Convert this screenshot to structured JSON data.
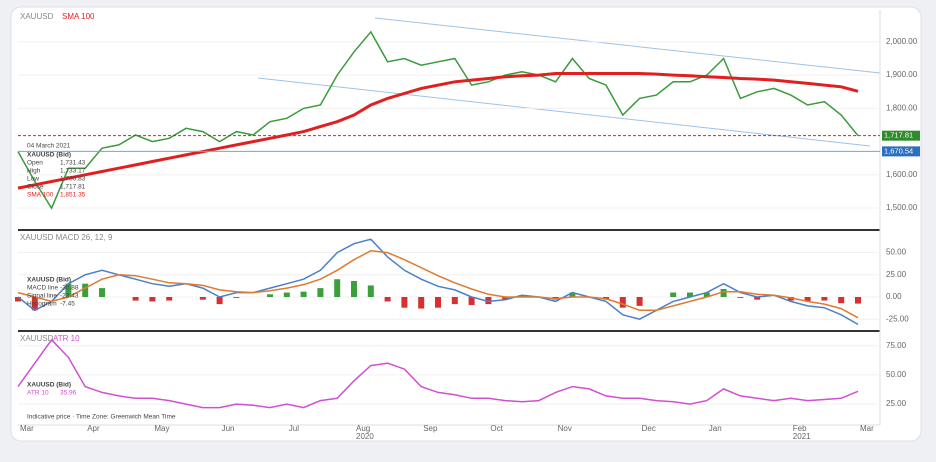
{
  "chart_data": [
    {
      "type": "line",
      "header": "XAUUSD",
      "series": [
        {
          "name": "XAUUSD",
          "color": "#3a9a3a",
          "values": [
            1670,
            1580,
            1500,
            1620,
            1620,
            1680,
            1690,
            1720,
            1700,
            1710,
            1740,
            1730,
            1700,
            1730,
            1720,
            1760,
            1770,
            1800,
            1810,
            1900,
            1970,
            2030,
            1940,
            1950,
            1930,
            1940,
            1950,
            1870,
            1880,
            1900,
            1910,
            1900,
            1880,
            1950,
            1890,
            1870,
            1780,
            1830,
            1840,
            1880,
            1880,
            1900,
            1950,
            1830,
            1850,
            1860,
            1840,
            1810,
            1820,
            1780,
            1717.81
          ]
        },
        {
          "name": "SMA 100",
          "color": "#e02020",
          "values": [
            1560,
            1570,
            1580,
            1590,
            1600,
            1610,
            1620,
            1630,
            1640,
            1650,
            1660,
            1670,
            1680,
            1690,
            1700,
            1710,
            1720,
            1730,
            1745,
            1760,
            1780,
            1810,
            1830,
            1845,
            1860,
            1870,
            1880,
            1885,
            1890,
            1895,
            1898,
            1900,
            1905,
            1905,
            1905,
            1905,
            1905,
            1905,
            1903,
            1900,
            1898,
            1895,
            1893,
            1890,
            1888,
            1885,
            1880,
            1875,
            1870,
            1865,
            1851.35
          ]
        }
      ],
      "ylim": [
        1440,
        2090
      ],
      "yticks": [
        {
          "value": 1500,
          "label": "1,500.00"
        },
        {
          "value": 1600,
          "label": "1,600.00"
        },
        {
          "value": 1800,
          "label": "1,800.00"
        },
        {
          "value": 1900,
          "label": "1,900.00"
        },
        {
          "value": 2000,
          "label": "2,000.00"
        }
      ],
      "price_tag": "1,717.81",
      "level": {
        "value": 1670.54,
        "label": "1,670.54"
      },
      "info": {
        "date": "04 March 2021",
        "title": "XAUUSD (Bid)",
        "rows": [
          [
            "Open",
            "1,731.43"
          ],
          [
            "High",
            "1,733.17"
          ],
          [
            "Low",
            "1,700.83"
          ],
          [
            "Close",
            "1,717.81"
          ],
          [
            "SMA 100",
            "1,851.35"
          ]
        ]
      }
    },
    {
      "type": "line",
      "header": "XAUUSD MACD 26, 12, 9",
      "series": [
        {
          "name": "Histogram",
          "kind": "bar",
          "color": "#3aa03a",
          "negative_color": "#d83030",
          "values": [
            -5,
            -15,
            0,
            15,
            15,
            10,
            0,
            -4,
            -5,
            -4,
            0,
            -3,
            -8,
            -1,
            0,
            3,
            5,
            6,
            10,
            20,
            18,
            13,
            -5,
            -12,
            -13,
            -12,
            -8,
            -9,
            -8,
            -3,
            2,
            0,
            -3,
            5,
            0,
            -3,
            -12,
            -10,
            0,
            5,
            5,
            5,
            9,
            -1,
            -3,
            0,
            -4,
            -5,
            -4,
            -7,
            -7.45
          ]
        },
        {
          "name": "MACD line",
          "color": "#4a80c8",
          "values": [
            0,
            -15,
            -5,
            15,
            25,
            30,
            25,
            20,
            15,
            12,
            15,
            10,
            0,
            5,
            5,
            10,
            15,
            20,
            30,
            50,
            60,
            65,
            45,
            30,
            20,
            12,
            8,
            0,
            -5,
            -3,
            2,
            0,
            -5,
            5,
            0,
            -5,
            -20,
            -25,
            -15,
            -5,
            0,
            5,
            15,
            5,
            0,
            2,
            -5,
            -10,
            -12,
            -20,
            -30.88
          ]
        },
        {
          "name": "Signal line",
          "color": "#e07a30",
          "values": [
            5,
            0,
            -5,
            0,
            10,
            20,
            25,
            24,
            20,
            16,
            15,
            13,
            8,
            6,
            5,
            7,
            10,
            14,
            20,
            30,
            42,
            52,
            50,
            42,
            33,
            24,
            16,
            9,
            3,
            0,
            0,
            0,
            -2,
            0,
            0,
            -2,
            -8,
            -15,
            -15,
            -10,
            -5,
            0,
            6,
            6,
            3,
            2,
            -1,
            -5,
            -8,
            -13,
            -23.43
          ]
        }
      ],
      "ylim": [
        -36,
        72
      ],
      "yticks": [
        {
          "value": -25,
          "label": "-25.00"
        },
        {
          "value": 0,
          "label": "0.00"
        },
        {
          "value": 25,
          "label": "25.00"
        },
        {
          "value": 50,
          "label": "50.00"
        }
      ],
      "info": {
        "title": "XAUUSD (Bid)",
        "rows": [
          [
            "MACD line",
            "-30.88"
          ],
          [
            "Signal line",
            "-23.43"
          ],
          [
            "Histogram",
            "-7.45"
          ]
        ]
      }
    },
    {
      "type": "line",
      "header": "XAUUSD",
      "series": [
        {
          "name": "ATR 10",
          "color": "#d050d0",
          "values": [
            40,
            60,
            80,
            65,
            40,
            35,
            32,
            30,
            30,
            28,
            25,
            22,
            22,
            25,
            24,
            22,
            25,
            22,
            28,
            30,
            45,
            58,
            60,
            55,
            40,
            35,
            33,
            30,
            30,
            28,
            27,
            28,
            35,
            40,
            38,
            32,
            30,
            30,
            28,
            27,
            25,
            28,
            38,
            32,
            30,
            28,
            30,
            28,
            29,
            30,
            35.96
          ]
        }
      ],
      "ylim": [
        8,
        85
      ],
      "yticks": [
        {
          "value": 25,
          "label": "25.00"
        },
        {
          "value": 50,
          "label": "50.00"
        },
        {
          "value": 75,
          "label": "75.00"
        }
      ],
      "categories": [
        "Mar",
        null,
        null,
        null,
        "Apr",
        null,
        null,
        null,
        "May",
        null,
        null,
        null,
        "Jun",
        null,
        null,
        null,
        "Jul",
        null,
        null,
        null,
        "Aug",
        null,
        null,
        null,
        "Sep",
        null,
        null,
        null,
        "Oct",
        null,
        null,
        null,
        "Nov",
        null,
        null,
        null,
        null,
        "Dec",
        null,
        null,
        null,
        "Jan",
        null,
        null,
        null,
        null,
        "Feb",
        null,
        null,
        null,
        "Mar"
      ],
      "years": [
        "2020",
        "2021"
      ],
      "info": {
        "title": "XAUUSD (Bid)",
        "rows": [
          [
            "ATR 10",
            "35.96"
          ]
        ]
      },
      "footnote": "Indicative price · Time Zone: Greenwich Mean Time"
    }
  ]
}
